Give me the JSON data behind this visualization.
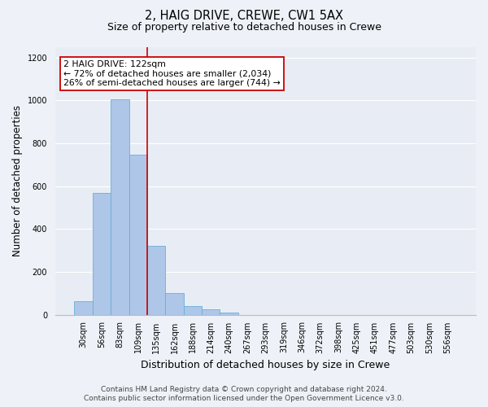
{
  "title1": "2, HAIG DRIVE, CREWE, CW1 5AX",
  "title2": "Size of property relative to detached houses in Crewe",
  "xlabel": "Distribution of detached houses by size in Crewe",
  "ylabel": "Number of detached properties",
  "categories": [
    "30sqm",
    "56sqm",
    "83sqm",
    "109sqm",
    "135sqm",
    "162sqm",
    "188sqm",
    "214sqm",
    "240sqm",
    "267sqm",
    "293sqm",
    "319sqm",
    "346sqm",
    "372sqm",
    "398sqm",
    "425sqm",
    "451sqm",
    "477sqm",
    "503sqm",
    "530sqm",
    "556sqm"
  ],
  "bar_heights": [
    65,
    570,
    1005,
    748,
    320,
    100,
    40,
    25,
    10,
    0,
    0,
    0,
    0,
    0,
    0,
    0,
    0,
    0,
    0,
    0,
    0
  ],
  "bar_color": "#aec6e8",
  "bar_edge_color": "#6baed6",
  "fig_bg_color": "#eef2f8",
  "ax_bg_color": "#e8edf5",
  "grid_color": "#ffffff",
  "vline_color": "#cc0000",
  "vline_x": 3.5,
  "annotation_text": "2 HAIG DRIVE: 122sqm\n← 72% of detached houses are smaller (2,034)\n26% of semi-detached houses are larger (744) →",
  "annotation_box_color": "#ffffff",
  "annotation_box_edge": "#cc0000",
  "footer1": "Contains HM Land Registry data © Crown copyright and database right 2024.",
  "footer2": "Contains public sector information licensed under the Open Government Licence v3.0.",
  "ylim": [
    0,
    1250
  ],
  "yticks": [
    0,
    200,
    400,
    600,
    800,
    1000,
    1200
  ],
  "title1_fontsize": 10.5,
  "title2_fontsize": 9,
  "ylabel_fontsize": 8.5,
  "xlabel_fontsize": 9,
  "tick_fontsize": 7,
  "footer_fontsize": 6.5,
  "annot_fontsize": 7.8
}
